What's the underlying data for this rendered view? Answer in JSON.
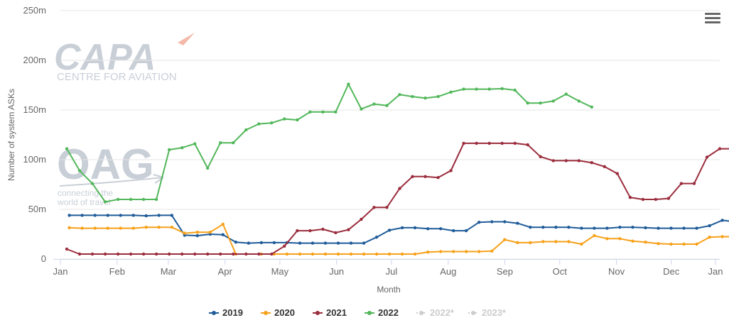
{
  "chart_data": {
    "type": "line",
    "title": "",
    "xlabel": "Month",
    "ylabel": "Number of system ASKs",
    "ylim": [
      0,
      250
    ],
    "y_ticks": [
      "0",
      "50m",
      "100m",
      "150m",
      "200m",
      "250m"
    ],
    "x_range": [
      0,
      51.5
    ],
    "x_ticks": [
      {
        "label": "Jan",
        "week": 0
      },
      {
        "label": "Feb",
        "week": 4.43
      },
      {
        "label": "Mar",
        "week": 8.43
      },
      {
        "label": "Apr",
        "week": 12.86
      },
      {
        "label": "May",
        "week": 17.14
      },
      {
        "label": "Jun",
        "week": 21.57
      },
      {
        "label": "Jul",
        "week": 25.86
      },
      {
        "label": "Aug",
        "week": 30.29
      },
      {
        "label": "Sep",
        "week": 34.71
      },
      {
        "label": "Oct",
        "week": 39.0
      },
      {
        "label": "Nov",
        "week": 43.43
      },
      {
        "label": "Dec",
        "week": 47.71
      },
      {
        "label": "Jan",
        "week": 52.14
      }
    ],
    "grid": "horizontal",
    "legend_position": "bottom",
    "series": [
      {
        "name": "2019",
        "color": "#1f5c99",
        "x_start": 0.7,
        "values": [
          44,
          44,
          44,
          44,
          44,
          44,
          43.5,
          44,
          44,
          24,
          23.5,
          25,
          24.5,
          17,
          16,
          16.5,
          16.5,
          16.5,
          16,
          16,
          16,
          16,
          16,
          16,
          22,
          29,
          31.5,
          31.5,
          30.5,
          30.5,
          28.5,
          28.5,
          37,
          37.5,
          37.5,
          36,
          32,
          32,
          32,
          32,
          31,
          31,
          31,
          32,
          32,
          31.5,
          31,
          31,
          31,
          31,
          33.5,
          39,
          37.5
        ]
      },
      {
        "name": "2020",
        "color": "#f7a11a",
        "x_start": 0.7,
        "values": [
          31.5,
          31,
          31,
          31,
          31,
          31,
          32,
          32,
          32,
          26,
          27,
          27,
          35,
          5,
          null,
          5,
          5,
          5,
          5,
          5,
          5,
          5,
          5,
          5,
          5,
          5,
          5,
          5,
          7,
          7.5,
          7.5,
          7.5,
          7.5,
          8,
          19.5,
          16.5,
          16.5,
          17.5,
          17.5,
          17.5,
          15,
          23.5,
          20.5,
          20.5,
          18,
          17,
          15.5,
          15,
          15,
          15,
          22,
          22.5,
          22.5
        ]
      },
      {
        "name": "2021",
        "color": "#9b2d3d",
        "x_start": 0.5,
        "values": [
          10,
          5,
          5,
          5,
          5,
          5,
          5,
          5,
          5,
          5,
          5,
          5,
          5,
          5,
          5,
          5,
          5,
          13,
          28.5,
          28.5,
          30,
          26.5,
          29.5,
          40,
          52,
          52,
          71,
          83,
          83,
          82,
          89,
          116.5,
          116.5,
          116.5,
          116.5,
          116.5,
          115,
          103,
          99,
          99,
          99,
          97,
          93,
          86,
          62,
          60,
          60,
          61,
          76,
          76,
          102.5,
          111,
          111
        ]
      },
      {
        "name": "2022",
        "color": "#52b75a",
        "x_start": 0.5,
        "values": [
          111,
          89,
          76,
          57.5,
          60,
          60,
          60,
          60,
          110,
          112,
          116,
          91.5,
          117,
          117,
          130,
          136,
          137,
          141,
          140,
          148,
          148,
          148,
          176,
          151,
          156,
          154.5,
          165.5,
          163.5,
          162,
          163.5,
          168,
          171,
          171,
          171,
          171.5,
          170,
          157,
          157,
          159,
          166,
          159,
          153
        ]
      }
    ],
    "hidden_legend_items": [
      "2022*",
      "2023*"
    ],
    "hidden_legend_color": "#cccccc"
  },
  "logos": {
    "capa_main": "CAPA",
    "capa_sub": "CENTRE FOR AVIATION",
    "oag_main": "OAG",
    "oag_line1": "connecting the",
    "oag_line2": "world of travel"
  },
  "menu": {
    "icon": "hamburger-menu-icon"
  }
}
